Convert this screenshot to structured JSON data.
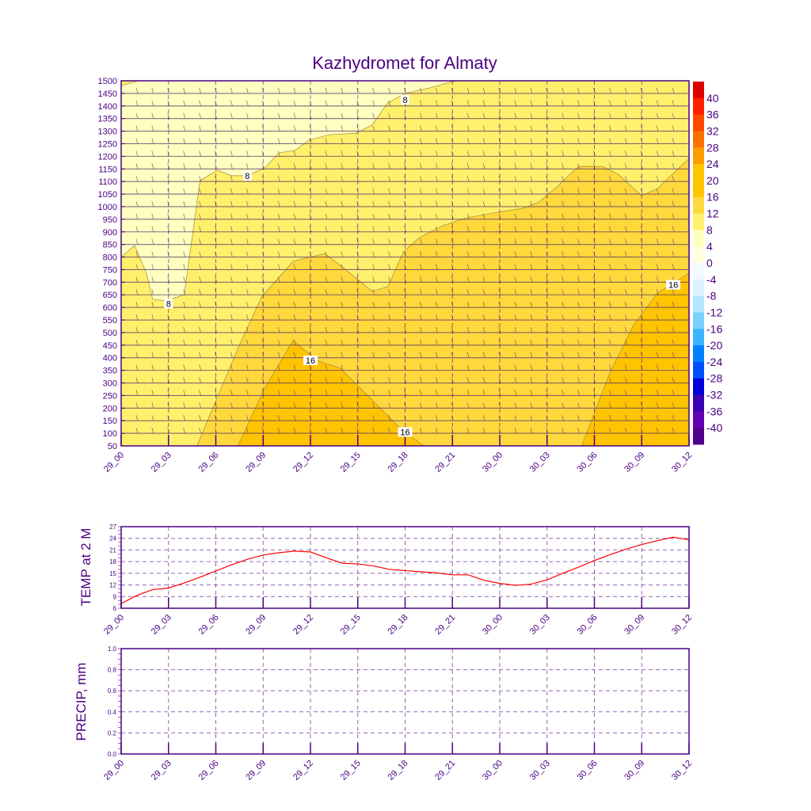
{
  "chart_data": [
    {
      "type": "heatmap",
      "title": "Kazhydromet for Almaty",
      "subtype": "filled-contour with wind barbs",
      "xlabel": "",
      "ylabel": "",
      "x_range_hours": [
        0,
        36
      ],
      "ylim": [
        50,
        1500
      ],
      "x_ticks": [
        "29_00",
        "29_03",
        "29_06",
        "29_09",
        "29_12",
        "29_15",
        "29_18",
        "29_21",
        "30_00",
        "30_03",
        "30_06",
        "30_09",
        "30_12"
      ],
      "y_ticks": [
        50,
        100,
        150,
        200,
        250,
        300,
        350,
        400,
        450,
        500,
        550,
        600,
        650,
        700,
        750,
        800,
        850,
        900,
        950,
        1000,
        1050,
        1100,
        1150,
        1200,
        1250,
        1300,
        1350,
        1400,
        1450,
        1500
      ],
      "contours": [
        {
          "level": 8,
          "fill_below_color": "#ffffc0",
          "points": [
            [
              0,
              1481
            ],
            [
              1.1,
              1500
            ],
            [
              21.2,
              1500
            ],
            [
              19.4,
              1469
            ],
            [
              18,
              1450
            ],
            [
              16.9,
              1412
            ],
            [
              15.9,
              1324
            ],
            [
              14.9,
              1292
            ],
            [
              13.2,
              1286
            ],
            [
              11.9,
              1264
            ],
            [
              11,
              1223
            ],
            [
              10,
              1214
            ],
            [
              9.1,
              1154
            ],
            [
              8,
              1123
            ],
            [
              7,
              1123
            ],
            [
              6.1,
              1145
            ],
            [
              5,
              1104
            ],
            [
              4,
              651
            ],
            [
              2.9,
              626
            ],
            [
              2,
              632
            ],
            [
              1.6,
              736
            ],
            [
              0.85,
              846
            ],
            [
              0,
              799
            ]
          ]
        },
        {
          "level": 12,
          "fill_above_color": "#ffd83c",
          "points": [
            [
              4.8,
              50
            ],
            [
              7.4,
              437
            ],
            [
              8.9,
              641
            ],
            [
              10.9,
              783
            ],
            [
              12.9,
              814
            ],
            [
              13.9,
              767
            ],
            [
              15.9,
              664
            ],
            [
              16.9,
              682
            ],
            [
              17.9,
              821
            ],
            [
              18.9,
              877
            ],
            [
              20.4,
              925
            ],
            [
              21.9,
              956
            ],
            [
              23.9,
              978
            ],
            [
              25.5,
              994
            ],
            [
              26.5,
              1019
            ],
            [
              27.5,
              1072
            ],
            [
              29,
              1160
            ],
            [
              30.5,
              1160
            ],
            [
              31.5,
              1129
            ],
            [
              33,
              1044
            ],
            [
              34,
              1072
            ],
            [
              36,
              1192
            ],
            [
              36,
              50
            ]
          ]
        },
        {
          "level": 16,
          "fill_above_color": "#ffc400",
          "points": [
            [
              7.4,
              50
            ],
            [
              9.1,
              280
            ],
            [
              10.9,
              469
            ],
            [
              12.4,
              390
            ],
            [
              13.9,
              358
            ],
            [
              15.9,
              233
            ],
            [
              17.9,
              107
            ],
            [
              19.2,
              50
            ]
          ]
        },
        {
          "level": 16,
          "fill_above_color": "#ffc400",
          "points": [
            [
              29.2,
              50
            ],
            [
              31,
              343
            ],
            [
              32.5,
              531
            ],
            [
              34,
              657
            ],
            [
              36,
              736
            ],
            [
              36,
              50
            ]
          ]
        }
      ],
      "background_color": "#fff06c",
      "contour_labels": [
        {
          "text": "8",
          "x": 8,
          "y": 1123
        },
        {
          "text": "8",
          "x": 18,
          "y": 1425
        },
        {
          "text": "8",
          "x": 3,
          "y": 615
        },
        {
          "text": "16",
          "x": 12,
          "y": 390
        },
        {
          "text": "16",
          "x": 18,
          "y": 105
        },
        {
          "text": "16",
          "x": 35,
          "y": 690
        }
      ],
      "colorbar": {
        "labels": [
          "40",
          "36",
          "32",
          "28",
          "24",
          "20",
          "16",
          "12",
          "8",
          "4",
          "0",
          "-4",
          "-8",
          "-12",
          "-16",
          "-20",
          "-24",
          "-28",
          "-32",
          "-36",
          "-40"
        ],
        "colors": [
          "#dd0000",
          "#ff2200",
          "#ff4800",
          "#ff7000",
          "#ff9c00",
          "#ffc400",
          "#ffc400",
          "#ffd83c",
          "#fff06c",
          "#ffffc0",
          "#ffffe0",
          "#f4f9ff",
          "#dcf2ff",
          "#b4e4ff",
          "#78d0ff",
          "#3cb4ff",
          "#0082ff",
          "#0050ff",
          "#0000dc",
          "#3c00b4",
          "#6400b4",
          "#50008c"
        ]
      }
    },
    {
      "type": "line",
      "ylabel": "TEMP at 2 M",
      "ylim": [
        6,
        27
      ],
      "y_ticks": [
        "6",
        "9",
        "12",
        "15",
        "18",
        "21",
        "24",
        "27"
      ],
      "x_ticks": [
        "29_00",
        "29_03",
        "29_06",
        "29_09",
        "29_12",
        "29_15",
        "29_18",
        "29_21",
        "30_00",
        "30_03",
        "30_06",
        "30_09",
        "30_12"
      ],
      "line_color": "#ff0000",
      "x_hours": [
        0,
        1,
        2,
        3,
        4,
        5,
        6,
        7,
        8,
        9,
        10,
        11,
        12,
        13,
        14,
        15,
        16,
        17,
        18,
        19,
        20,
        21,
        22,
        23,
        24,
        25,
        26,
        27,
        28,
        29,
        30,
        31,
        32,
        33,
        34,
        35,
        36
      ],
      "values": [
        7.2,
        9.3,
        10.8,
        11.2,
        12.5,
        14.0,
        15.6,
        17.2,
        18.6,
        19.7,
        20.3,
        20.7,
        20.5,
        19.0,
        17.6,
        17.4,
        16.9,
        16.0,
        15.7,
        15.4,
        15.1,
        14.6,
        14.6,
        13.2,
        12.4,
        11.9,
        12.2,
        13.3,
        15.0,
        16.6,
        18.3,
        19.8,
        21.2,
        22.4,
        23.4,
        24.3,
        23.6
      ]
    },
    {
      "type": "line",
      "ylabel": "PRECIP, mm",
      "ylim": [
        0,
        1
      ],
      "y_ticks": [
        "0.0",
        "0.2",
        "0.4",
        "0.6",
        "0.8",
        "1.0"
      ],
      "x_ticks": [
        "29_00",
        "29_03",
        "29_06",
        "29_09",
        "29_12",
        "29_15",
        "29_18",
        "29_21",
        "30_00",
        "30_03",
        "30_06",
        "30_09",
        "30_12"
      ],
      "values": []
    }
  ]
}
